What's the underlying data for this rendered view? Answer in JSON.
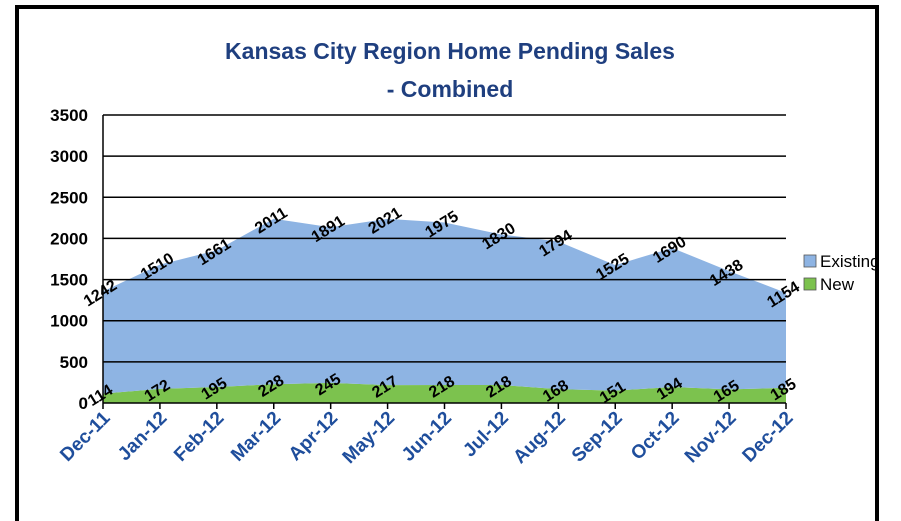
{
  "chart_data": {
    "type": "stacked_area",
    "title": "Kansas City Region Home Pending Sales - Combined",
    "categories": [
      "Dec-11",
      "Jan-12",
      "Feb-12",
      "Mar-12",
      "Apr-12",
      "May-12",
      "Jun-12",
      "Jul-12",
      "Aug-12",
      "Sep-12",
      "Oct-12",
      "Nov-12",
      "Dec-12"
    ],
    "series": [
      {
        "name": "New",
        "color": "#7cc24e",
        "values": [
          114,
          172,
          195,
          228,
          245,
          217,
          218,
          218,
          168,
          151,
          194,
          165,
          185
        ]
      },
      {
        "name": "Existing",
        "color": "#8eb4e3",
        "values": [
          1242,
          1510,
          1661,
          2011,
          1891,
          2021,
          1975,
          1830,
          1794,
          1525,
          1690,
          1438,
          1154
        ]
      }
    ],
    "ylim": [
      0,
      3500
    ],
    "yticks": [
      0,
      500,
      1000,
      1500,
      2000,
      2500,
      3000,
      3500
    ],
    "grid": true,
    "legend": "right"
  }
}
